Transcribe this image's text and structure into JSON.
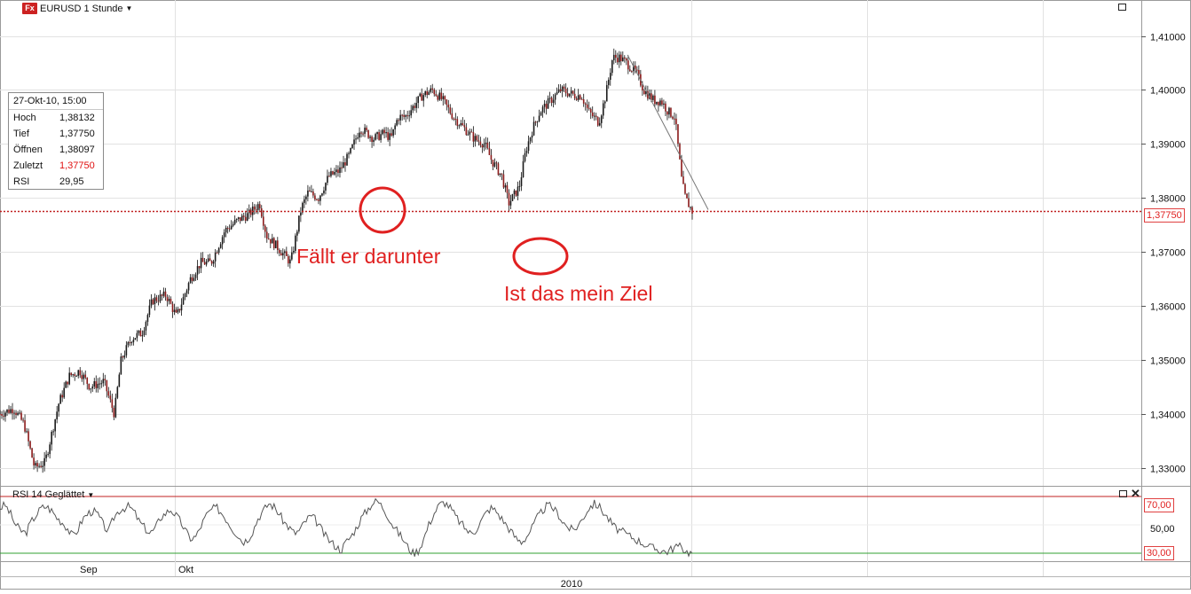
{
  "header": {
    "app_badge": "Fx",
    "instrument_title": "EURUSD 1 Stunde"
  },
  "info_box": {
    "timestamp": "27-Okt-10, 15:00",
    "rows": [
      {
        "label": "Hoch",
        "value": "1,38132"
      },
      {
        "label": "Tief",
        "value": "1,37750"
      },
      {
        "label": "Öffnen",
        "value": "1,38097"
      },
      {
        "label": "Zuletzt",
        "value": "1,37750"
      },
      {
        "label": "RSI",
        "value": "29,95"
      }
    ]
  },
  "annotations": {
    "first": "Fällt er darunter",
    "second": "Ist das mein Ziel"
  },
  "rsi_panel": {
    "title": "RSI 14 Geglättet",
    "upper_label": "70,00",
    "mid_label": "50,00",
    "lower_label": "30,00"
  },
  "last_price_tag": "1,37750",
  "colors": {
    "up": "#1a1a1a",
    "down": "#8b1a1a",
    "last_price_line": "#c02020",
    "rsi_upper": "#c02020",
    "rsi_lower": "#30a030",
    "annotation": "#e02020"
  },
  "chart_data": [
    {
      "type": "candlestick",
      "title": "EURUSD 1 Stunde",
      "x_tick_labels": [
        "Sep",
        "Okt"
      ],
      "x_group_label": "2010",
      "y_tick_labels": [
        "1,33000",
        "1,34000",
        "1,35000",
        "1,36000",
        "1,37000",
        "1,38000",
        "1,39000",
        "1,40000",
        "1,41000"
      ],
      "ylim": [
        1.327,
        1.416
      ],
      "grid": true,
      "last_value": 1.3775,
      "trendline": {
        "from": [
          0.9065,
          1.4065
        ],
        "to": [
          1.0,
          1.3775
        ]
      },
      "path_points": [
        [
          0.0,
          1.34
        ],
        [
          0.02,
          1.341
        ],
        [
          0.035,
          1.338
        ],
        [
          0.05,
          1.33
        ],
        [
          0.065,
          1.331
        ],
        [
          0.085,
          1.342
        ],
        [
          0.1,
          1.347
        ],
        [
          0.115,
          1.348
        ],
        [
          0.13,
          1.345
        ],
        [
          0.15,
          1.346
        ],
        [
          0.165,
          1.34
        ],
        [
          0.175,
          1.35
        ],
        [
          0.19,
          1.354
        ],
        [
          0.205,
          1.355
        ],
        [
          0.22,
          1.361
        ],
        [
          0.24,
          1.362
        ],
        [
          0.255,
          1.358
        ],
        [
          0.275,
          1.365
        ],
        [
          0.29,
          1.368
        ],
        [
          0.305,
          1.368
        ],
        [
          0.325,
          1.374
        ],
        [
          0.345,
          1.376
        ],
        [
          0.36,
          1.377
        ],
        [
          0.375,
          1.379
        ],
        [
          0.385,
          1.373
        ],
        [
          0.4,
          1.371
        ],
        [
          0.42,
          1.368
        ],
        [
          0.435,
          1.378
        ],
        [
          0.445,
          1.381
        ],
        [
          0.46,
          1.38
        ],
        [
          0.475,
          1.384
        ],
        [
          0.49,
          1.385
        ],
        [
          0.505,
          1.388
        ],
        [
          0.52,
          1.393
        ],
        [
          0.54,
          1.391
        ],
        [
          0.555,
          1.392
        ],
        [
          0.565,
          1.391
        ],
        [
          0.575,
          1.395
        ],
        [
          0.585,
          1.395
        ],
        [
          0.61,
          1.399
        ],
        [
          0.625,
          1.4
        ],
        [
          0.64,
          1.398
        ],
        [
          0.655,
          1.395
        ],
        [
          0.67,
          1.393
        ],
        [
          0.685,
          1.391
        ],
        [
          0.7,
          1.39
        ],
        [
          0.71,
          1.387
        ],
        [
          0.725,
          1.384
        ],
        [
          0.735,
          1.379
        ],
        [
          0.74,
          1.38
        ],
        [
          0.75,
          1.382
        ],
        [
          0.76,
          1.389
        ],
        [
          0.77,
          1.393
        ],
        [
          0.78,
          1.396
        ],
        [
          0.795,
          1.398
        ],
        [
          0.81,
          1.4
        ],
        [
          0.83,
          1.399
        ],
        [
          0.84,
          1.399
        ],
        [
          0.85,
          1.396
        ],
        [
          0.865,
          1.394
        ],
        [
          0.875,
          1.399
        ],
        [
          0.885,
          1.406
        ],
        [
          0.895,
          1.406
        ],
        [
          0.905,
          1.405
        ],
        [
          0.92,
          1.403
        ],
        [
          0.93,
          1.4
        ],
        [
          0.945,
          1.398
        ],
        [
          0.955,
          1.398
        ],
        [
          0.965,
          1.396
        ],
        [
          0.975,
          1.395
        ],
        [
          0.985,
          1.383
        ],
        [
          0.99,
          1.38
        ],
        [
          1.0,
          1.3775
        ]
      ]
    },
    {
      "type": "line",
      "title": "RSI 14 Geglättet",
      "y_tick_labels": [
        "30,00",
        "50,00",
        "70,00"
      ],
      "ylim": [
        25,
        75
      ],
      "reference_lines": [
        70,
        30
      ],
      "values": [
        62,
        64,
        58,
        50,
        46,
        44,
        52,
        57,
        62,
        63,
        60,
        55,
        52,
        48,
        42,
        46,
        54,
        58,
        60,
        57,
        50,
        45,
        55,
        60,
        62,
        63,
        59,
        52,
        48,
        44,
        47,
        55,
        58,
        61,
        57,
        52,
        45,
        40,
        42,
        50,
        57,
        61,
        62,
        58,
        53,
        47,
        43,
        38,
        40,
        46,
        55,
        60,
        65,
        63,
        58,
        52,
        48,
        44,
        46,
        52,
        56,
        54,
        48,
        42,
        38,
        35,
        32,
        38,
        42,
        48,
        55,
        60,
        65,
        67,
        63,
        57,
        50,
        45,
        40,
        34,
        30,
        32,
        40,
        50,
        58,
        64,
        66,
        63,
        57,
        52,
        48,
        44,
        46,
        52,
        58,
        62,
        60,
        55,
        50,
        45,
        40,
        38,
        42,
        48,
        55,
        60,
        64,
        62,
        58,
        52,
        48,
        46,
        50,
        56,
        62,
        65,
        63,
        58,
        53,
        48,
        46,
        44,
        42,
        40,
        38,
        36,
        34,
        33,
        32,
        31,
        33,
        35,
        34,
        31,
        29.95
      ]
    }
  ]
}
